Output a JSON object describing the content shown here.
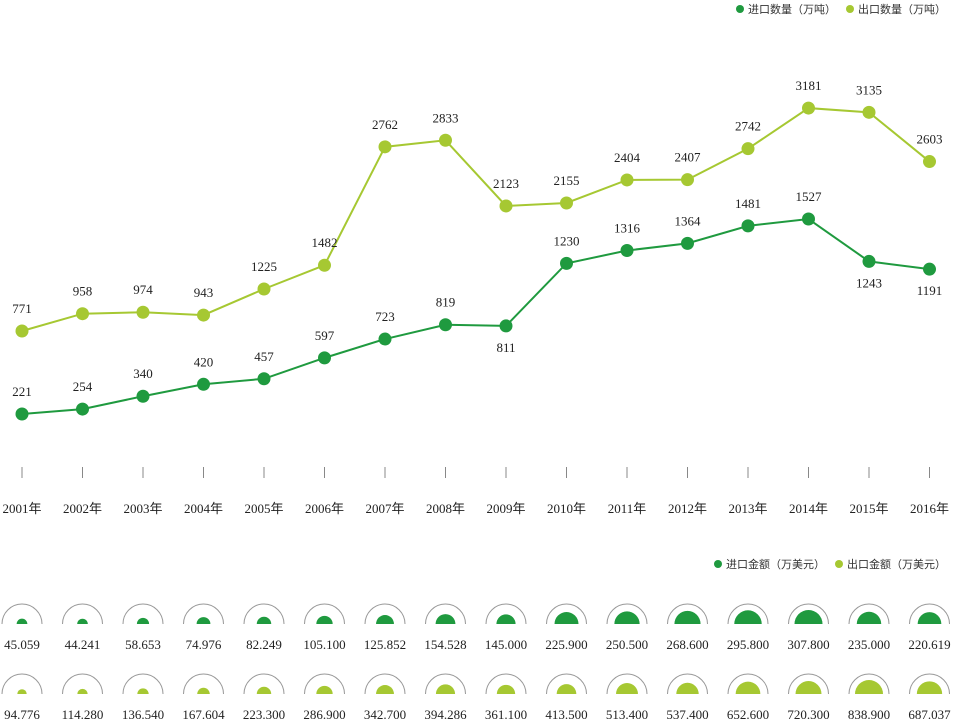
{
  "colors": {
    "import": "#1f9a3f",
    "export": "#a6c832",
    "arc": "#999999",
    "axis": "#888888"
  },
  "legend_top": [
    {
      "label": "进口数量（万吨）",
      "series": "import"
    },
    {
      "label": "出口数量（万吨）",
      "series": "export"
    }
  ],
  "legend_bottom": [
    {
      "label": "进口金额（万美元）",
      "series": "import"
    },
    {
      "label": "出口金额（万美元）",
      "series": "export"
    }
  ],
  "chart_data": [
    {
      "type": "line",
      "categories": [
        "2001年",
        "2002年",
        "2003年",
        "2004年",
        "2005年",
        "2006年",
        "2007年",
        "2008年",
        "2009年",
        "2010年",
        "2011年",
        "2012年",
        "2013年",
        "2014年",
        "2015年",
        "2016年"
      ],
      "series": [
        {
          "name": "进口数量（万吨）",
          "key": "import",
          "values": [
            221,
            254,
            340,
            420,
            457,
            597,
            723,
            819,
            811,
            1230,
            1316,
            1364,
            1481,
            1527,
            1243,
            1191
          ]
        },
        {
          "name": "出口数量（万吨）",
          "key": "export",
          "values": [
            771,
            958,
            974,
            943,
            1225,
            1482,
            2762,
            2833,
            2123,
            2155,
            2404,
            2407,
            2742,
            3181,
            3135,
            2603
          ]
        }
      ],
      "grid": false,
      "legend": "top-right"
    },
    {
      "type": "proportional-semicircle",
      "categories": [
        "2001年",
        "2002年",
        "2003年",
        "2004年",
        "2005年",
        "2006年",
        "2007年",
        "2008年",
        "2009年",
        "2010年",
        "2011年",
        "2012年",
        "2013年",
        "2014年",
        "2015年",
        "2016年"
      ],
      "series": [
        {
          "name": "进口金额（万美元）",
          "key": "import",
          "values": [
            "45.059",
            "44.241",
            "58.653",
            "74.976",
            "82.249",
            "105.100",
            "125.852",
            "154.528",
            "145.000",
            "225.900",
            "250.500",
            "268.600",
            "295.800",
            "307.800",
            "235.000",
            "220.619"
          ]
        },
        {
          "name": "出口金额（万美元）",
          "key": "export",
          "values": [
            "94.776",
            "114.280",
            "136.540",
            "167.604",
            "223.300",
            "286.900",
            "342.700",
            "394.286",
            "361.100",
            "413.500",
            "513.400",
            "537.400",
            "652.600",
            "720.300",
            "838.900",
            "687.037"
          ]
        }
      ],
      "legend": "right"
    }
  ]
}
